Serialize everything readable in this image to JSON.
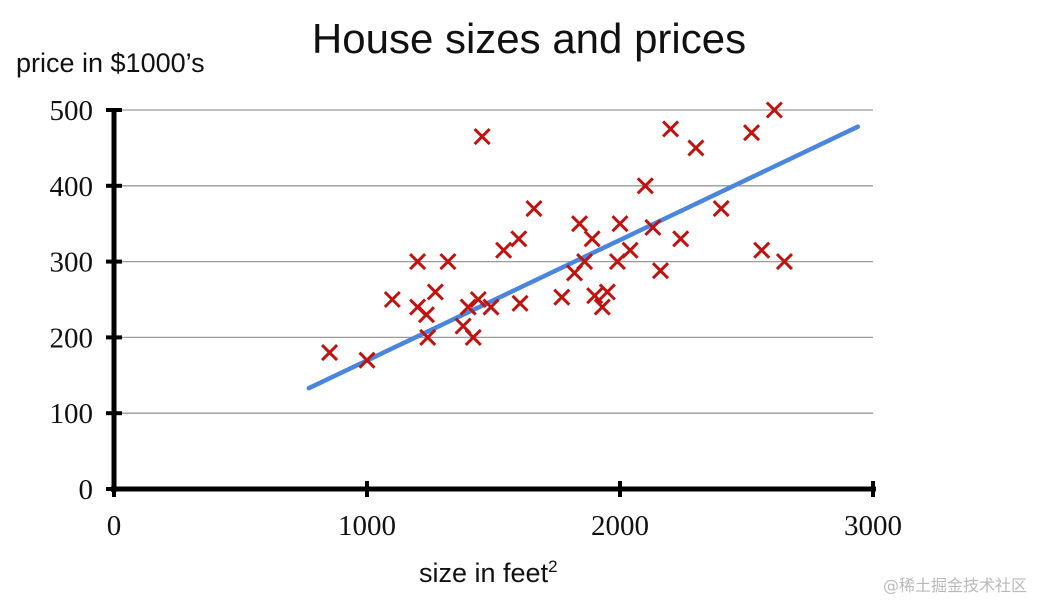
{
  "chart_data": {
    "type": "scatter",
    "title": "House sizes and prices",
    "xlabel": "size in feet",
    "xlabel_superscript": "2",
    "ylabel": "price in $1000’s",
    "xlim": [
      0,
      3000
    ],
    "ylim": [
      0,
      500
    ],
    "x_ticks": [
      "0",
      "1000",
      "2000",
      "3000"
    ],
    "y_ticks": [
      "0",
      "100",
      "200",
      "300",
      "400",
      "500"
    ],
    "grid": "horizontal",
    "marker": "x",
    "colors": {
      "points": "#c0120f",
      "fit_line": "#4a86e0",
      "axes": "#000000",
      "grid": "#9a9a9a"
    },
    "points": [
      [
        852,
        180
      ],
      [
        1000,
        170
      ],
      [
        1100,
        250
      ],
      [
        1200,
        300
      ],
      [
        1200,
        240
      ],
      [
        1235,
        230
      ],
      [
        1240,
        200
      ],
      [
        1270,
        260
      ],
      [
        1320,
        300
      ],
      [
        1380,
        215
      ],
      [
        1400,
        240
      ],
      [
        1420,
        200
      ],
      [
        1440,
        250
      ],
      [
        1455,
        465
      ],
      [
        1490,
        240
      ],
      [
        1540,
        315
      ],
      [
        1600,
        330
      ],
      [
        1605,
        245
      ],
      [
        1660,
        370
      ],
      [
        1770,
        253
      ],
      [
        1820,
        285
      ],
      [
        1840,
        350
      ],
      [
        1860,
        300
      ],
      [
        1890,
        330
      ],
      [
        1900,
        255
      ],
      [
        1930,
        240
      ],
      [
        1950,
        260
      ],
      [
        1990,
        300
      ],
      [
        2000,
        350
      ],
      [
        2040,
        315
      ],
      [
        2100,
        400
      ],
      [
        2130,
        345
      ],
      [
        2160,
        288
      ],
      [
        2200,
        475
      ],
      [
        2240,
        330
      ],
      [
        2300,
        450
      ],
      [
        2400,
        370
      ],
      [
        2520,
        470
      ],
      [
        2560,
        315
      ],
      [
        2610,
        500
      ],
      [
        2650,
        300
      ]
    ],
    "fit_line": {
      "x": [
        770,
        2940
      ],
      "y": [
        133,
        478
      ]
    }
  },
  "watermark": "@稀土掘金技术社区"
}
